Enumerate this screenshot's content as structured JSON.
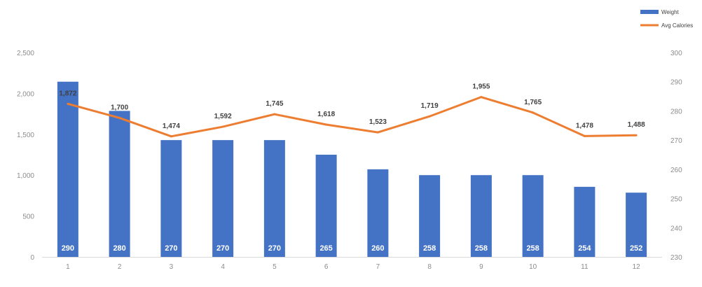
{
  "chart_data": {
    "type": "bar",
    "categories": [
      "1",
      "2",
      "3",
      "4",
      "5",
      "6",
      "7",
      "8",
      "9",
      "10",
      "11",
      "12"
    ],
    "series": [
      {
        "name": "Weight",
        "type": "bar",
        "axis": "right",
        "values": [
          290,
          280,
          270,
          270,
          270,
          265,
          260,
          258,
          258,
          258,
          254,
          252
        ],
        "color": "#4472c4"
      },
      {
        "name": "Avg Calories",
        "type": "line",
        "axis": "left",
        "values": [
          1872,
          1700,
          1474,
          1592,
          1745,
          1618,
          1523,
          1719,
          1955,
          1765,
          1478,
          1488
        ],
        "labels": [
          "1,872",
          "1,700",
          "1,474",
          "1,592",
          "1,745",
          "1,618",
          "1,523",
          "1,719",
          "1,955",
          "1,765",
          "1,478",
          "1,488"
        ],
        "color": "#ed7d31"
      }
    ],
    "y_left": {
      "ylim": [
        0,
        2500
      ],
      "ticks": [
        0,
        500,
        1000,
        1500,
        2000,
        2500
      ],
      "tick_labels": [
        "0",
        "500",
        "1,000",
        "1,500",
        "2,000",
        "2,500"
      ]
    },
    "y_right": {
      "ylim": [
        230,
        300
      ],
      "ticks": [
        230,
        240,
        250,
        260,
        270,
        280,
        290,
        300
      ],
      "tick_labels": [
        "230",
        "240",
        "250",
        "260",
        "270",
        "280",
        "290",
        "300"
      ]
    },
    "legend_position": "top-right",
    "grid": false,
    "title": "",
    "xlabel": "",
    "ylabel": ""
  }
}
